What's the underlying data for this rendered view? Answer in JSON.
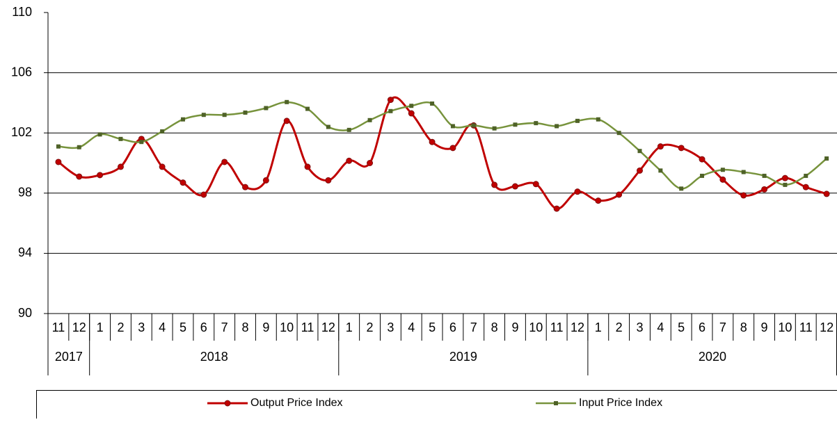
{
  "chart_data": {
    "type": "line",
    "categories": [
      "11",
      "12",
      "1",
      "2",
      "3",
      "4",
      "5",
      "6",
      "7",
      "8",
      "9",
      "10",
      "11",
      "12",
      "1",
      "2",
      "3",
      "4",
      "5",
      "6",
      "7",
      "8",
      "9",
      "10",
      "11",
      "12",
      "1",
      "2",
      "3",
      "4",
      "5",
      "6",
      "7",
      "8",
      "9",
      "10",
      "11",
      "12"
    ],
    "years": [
      "2017",
      null,
      "2018",
      null,
      null,
      null,
      null,
      null,
      null,
      null,
      null,
      null,
      null,
      null,
      "2019",
      null,
      null,
      null,
      null,
      null,
      null,
      null,
      null,
      null,
      null,
      null,
      "2020",
      null,
      null,
      null,
      null,
      null,
      null,
      null,
      null,
      null,
      null,
      null
    ],
    "series": [
      {
        "name": "Output Price Index",
        "color": "#c00000",
        "marker": "circle",
        "values": [
          100.07,
          99.1,
          99.2,
          99.75,
          101.6,
          99.75,
          98.7,
          97.9,
          100.07,
          98.4,
          98.85,
          102.8,
          99.75,
          98.85,
          100.15,
          100.0,
          104.2,
          103.3,
          101.4,
          101.0,
          102.5,
          98.55,
          98.45,
          98.6,
          96.97,
          98.1,
          97.5,
          97.9,
          99.5,
          101.1,
          101.0,
          100.25,
          98.9,
          97.85,
          98.25,
          99.0,
          98.4,
          97.95
        ]
      },
      {
        "name": "Input Price Index",
        "color": "#77933c",
        "marker": "square",
        "values": [
          101.1,
          101.05,
          101.9,
          101.6,
          101.4,
          102.1,
          102.9,
          103.2,
          103.2,
          103.35,
          103.65,
          104.05,
          103.6,
          102.4,
          102.2,
          102.85,
          103.45,
          103.8,
          103.95,
          102.45,
          102.5,
          102.3,
          102.55,
          102.65,
          102.45,
          102.8,
          102.9,
          102.0,
          100.8,
          99.5,
          98.3,
          99.15,
          99.55,
          99.4,
          99.15,
          98.55,
          99.15,
          100.3
        ]
      }
    ],
    "ylim": [
      90,
      110
    ],
    "yticks": [
      90,
      94,
      98,
      102,
      106,
      110
    ],
    "grid": true,
    "smooth": true,
    "legend": "bottom"
  }
}
